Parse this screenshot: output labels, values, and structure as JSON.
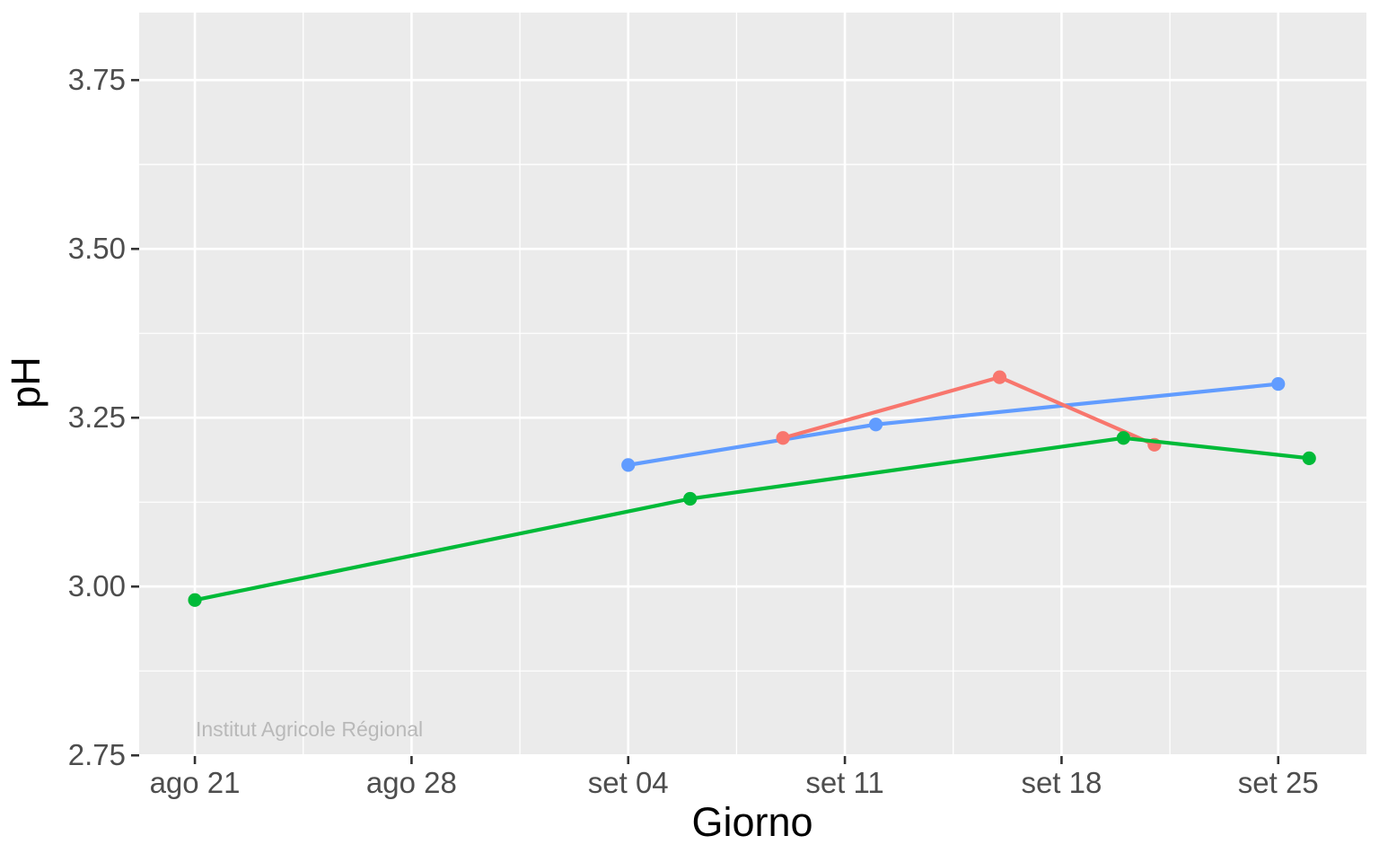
{
  "watermark": "Institut Agricole Régional",
  "chart_data": {
    "type": "line",
    "title": "",
    "xlabel": "Giorno",
    "ylabel": "pH",
    "legend": "none",
    "grid": "major and minor, white on grey panel",
    "x_axis": {
      "tick_labels": [
        "ago 21",
        "ago 28",
        "set 04",
        "set 11",
        "set 18",
        "set 25"
      ],
      "tick_days": [
        0,
        7,
        14,
        21,
        28,
        35
      ],
      "minor_days": [
        3.5,
        10.5,
        17.5,
        24.5,
        31.5
      ],
      "range_days": [
        -1.8,
        37.85
      ]
    },
    "y_axis": {
      "tick_labels": [
        "2.75",
        "3.00",
        "3.25",
        "3.50",
        "3.75"
      ],
      "tick_values": [
        2.75,
        3.0,
        3.25,
        3.5,
        3.75
      ],
      "minor_values": [
        2.875,
        3.125,
        3.375,
        3.625
      ],
      "range": [
        2.749,
        3.85
      ]
    },
    "series": [
      {
        "name": "series-blue",
        "color": "#619CFF",
        "points": [
          {
            "day": 14,
            "date": "set 04",
            "ph": 3.18
          },
          {
            "day": 22,
            "date": "set 12",
            "ph": 3.24
          },
          {
            "day": 35,
            "date": "set 25",
            "ph": 3.3
          }
        ]
      },
      {
        "name": "series-red",
        "color": "#F8766D",
        "points": [
          {
            "day": 19,
            "date": "set 09",
            "ph": 3.22
          },
          {
            "day": 26,
            "date": "set 16",
            "ph": 3.31
          },
          {
            "day": 31,
            "date": "set 21",
            "ph": 3.21
          }
        ]
      },
      {
        "name": "series-green",
        "color": "#00BA38",
        "points": [
          {
            "day": 0,
            "date": "ago 21",
            "ph": 2.98
          },
          {
            "day": 16,
            "date": "set 06",
            "ph": 3.13
          },
          {
            "day": 30,
            "date": "set 20",
            "ph": 3.22
          },
          {
            "day": 36,
            "date": "set 26",
            "ph": 3.19
          }
        ]
      }
    ],
    "style": {
      "panel_bg": "#EBEBEB",
      "grid_color": "#FFFFFF",
      "axis_text_color": "#4D4D4D",
      "tick_mark_color": "#333333"
    }
  }
}
